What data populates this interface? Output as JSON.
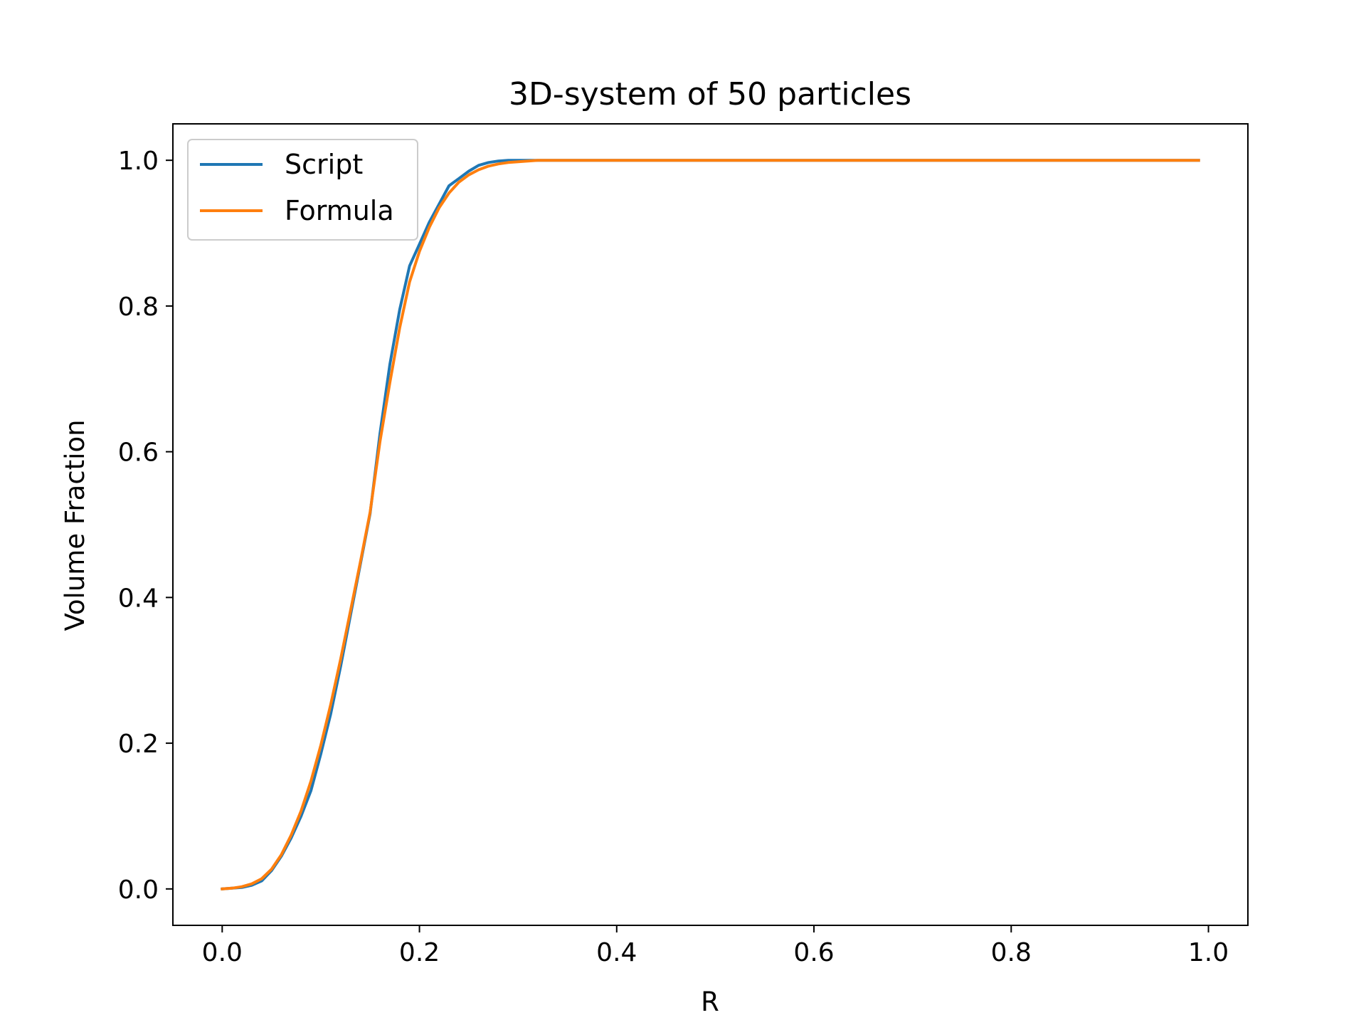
{
  "chart_data": {
    "type": "line",
    "title": "3D-system of 50 particles",
    "xlabel": "R",
    "ylabel": "Volume Fraction",
    "xlim": [
      -0.05,
      1.04
    ],
    "ylim": [
      -0.05,
      1.05
    ],
    "xticks": [
      0.0,
      0.2,
      0.4,
      0.6,
      0.8,
      1.0
    ],
    "xtick_labels": [
      "0.0",
      "0.2",
      "0.4",
      "0.6",
      "0.8",
      "1.0"
    ],
    "yticks": [
      0.0,
      0.2,
      0.4,
      0.6,
      0.8,
      1.0
    ],
    "ytick_labels": [
      "0.0",
      "0.2",
      "0.4",
      "0.6",
      "0.8",
      "1.0"
    ],
    "grid": false,
    "legend": "top-left",
    "series": [
      {
        "name": "Script",
        "color": "#1f77b4",
        "x": [
          0.0,
          0.01,
          0.02,
          0.03,
          0.04,
          0.05,
          0.06,
          0.07,
          0.08,
          0.09,
          0.1,
          0.11,
          0.12,
          0.13,
          0.14,
          0.15,
          0.16,
          0.17,
          0.18,
          0.19,
          0.2,
          0.21,
          0.22,
          0.23,
          0.24,
          0.25,
          0.26,
          0.27,
          0.28,
          0.29,
          0.3,
          0.31,
          0.32,
          0.33,
          0.34,
          0.35,
          0.4,
          0.5,
          0.6,
          0.7,
          0.8,
          0.9,
          0.99
        ],
        "y": [
          0.0,
          0.001,
          0.002,
          0.005,
          0.011,
          0.025,
          0.045,
          0.07,
          0.1,
          0.135,
          0.185,
          0.24,
          0.305,
          0.375,
          0.445,
          0.515,
          0.625,
          0.72,
          0.795,
          0.855,
          0.885,
          0.915,
          0.94,
          0.965,
          0.975,
          0.985,
          0.993,
          0.997,
          0.999,
          1.0,
          1.0,
          1.0,
          1.0,
          1.0,
          1.0,
          1.0,
          1.0,
          1.0,
          1.0,
          1.0,
          1.0,
          1.0,
          1.0
        ]
      },
      {
        "name": "Formula",
        "color": "#ff7f0e",
        "x": [
          0.0,
          0.01,
          0.02,
          0.03,
          0.04,
          0.05,
          0.06,
          0.07,
          0.08,
          0.09,
          0.1,
          0.11,
          0.12,
          0.13,
          0.14,
          0.15,
          0.16,
          0.17,
          0.18,
          0.19,
          0.2,
          0.21,
          0.22,
          0.23,
          0.24,
          0.25,
          0.26,
          0.27,
          0.28,
          0.29,
          0.3,
          0.31,
          0.32,
          0.33,
          0.34,
          0.35,
          0.4,
          0.5,
          0.6,
          0.7,
          0.8,
          0.9,
          0.99
        ],
        "y": [
          0.0,
          0.001,
          0.003,
          0.007,
          0.014,
          0.027,
          0.047,
          0.074,
          0.107,
          0.148,
          0.197,
          0.253,
          0.315,
          0.381,
          0.448,
          0.517,
          0.614,
          0.695,
          0.77,
          0.833,
          0.875,
          0.908,
          0.935,
          0.955,
          0.97,
          0.98,
          0.987,
          0.992,
          0.995,
          0.997,
          0.998,
          0.999,
          1.0,
          1.0,
          1.0,
          1.0,
          1.0,
          1.0,
          1.0,
          1.0,
          1.0,
          1.0,
          1.0
        ]
      }
    ]
  }
}
